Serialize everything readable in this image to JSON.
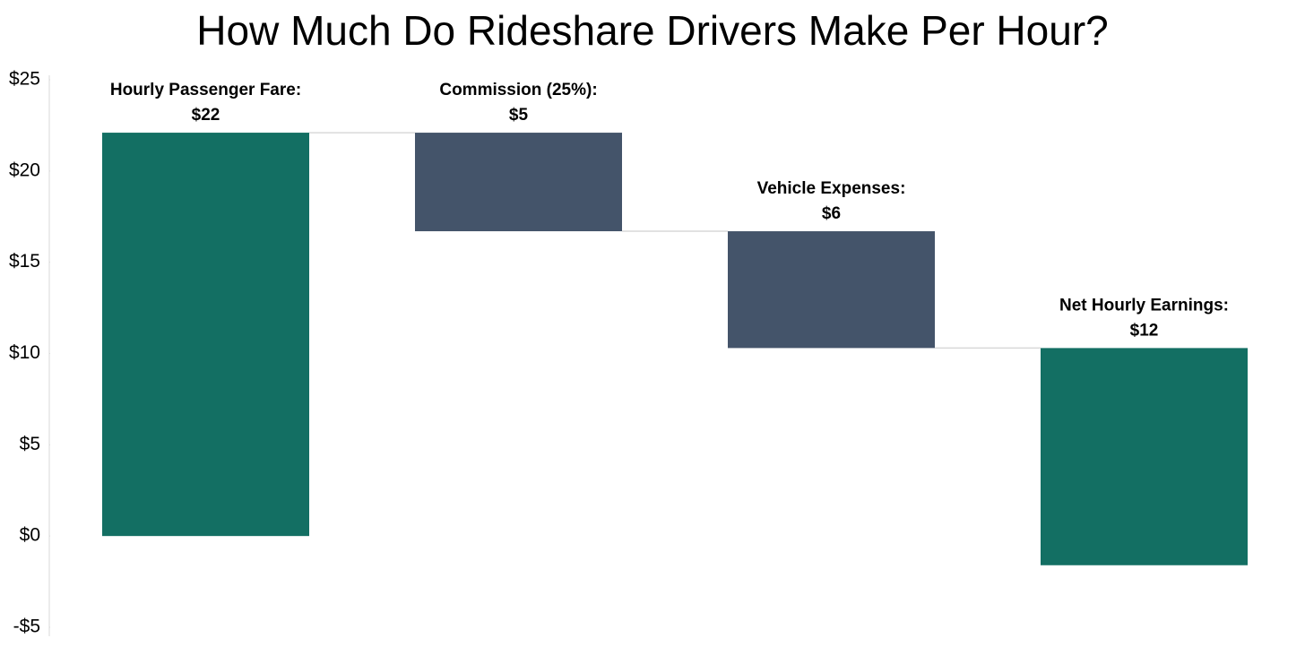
{
  "chart_data": {
    "type": "waterfall",
    "title": "How Much Do Rideshare Drivers Make Per Hour?",
    "categories": [
      "Hourly Passenger Fare:",
      "Commission (25%):",
      "Vehicle Expenses:",
      "Net Hourly Earnings:"
    ],
    "values": [
      22.1,
      -5.4,
      -6.4,
      11.9
    ],
    "value_labels": [
      "$22",
      "$5",
      "$6",
      "$12"
    ],
    "measures": [
      "absolute",
      "relative",
      "relative",
      "total"
    ],
    "colors": [
      "#136f63",
      "#44546a",
      "#44546a",
      "#136f63"
    ],
    "ylim": [
      -5,
      25
    ],
    "yticks": [
      {
        "value": -5,
        "label": "-$5"
      },
      {
        "value": 0,
        "label": "$0"
      },
      {
        "value": 5,
        "label": "$5"
      },
      {
        "value": 10,
        "label": "$10"
      },
      {
        "value": 15,
        "label": "$15"
      },
      {
        "value": 20,
        "label": "$20"
      },
      {
        "value": 25,
        "label": "$25"
      }
    ]
  }
}
